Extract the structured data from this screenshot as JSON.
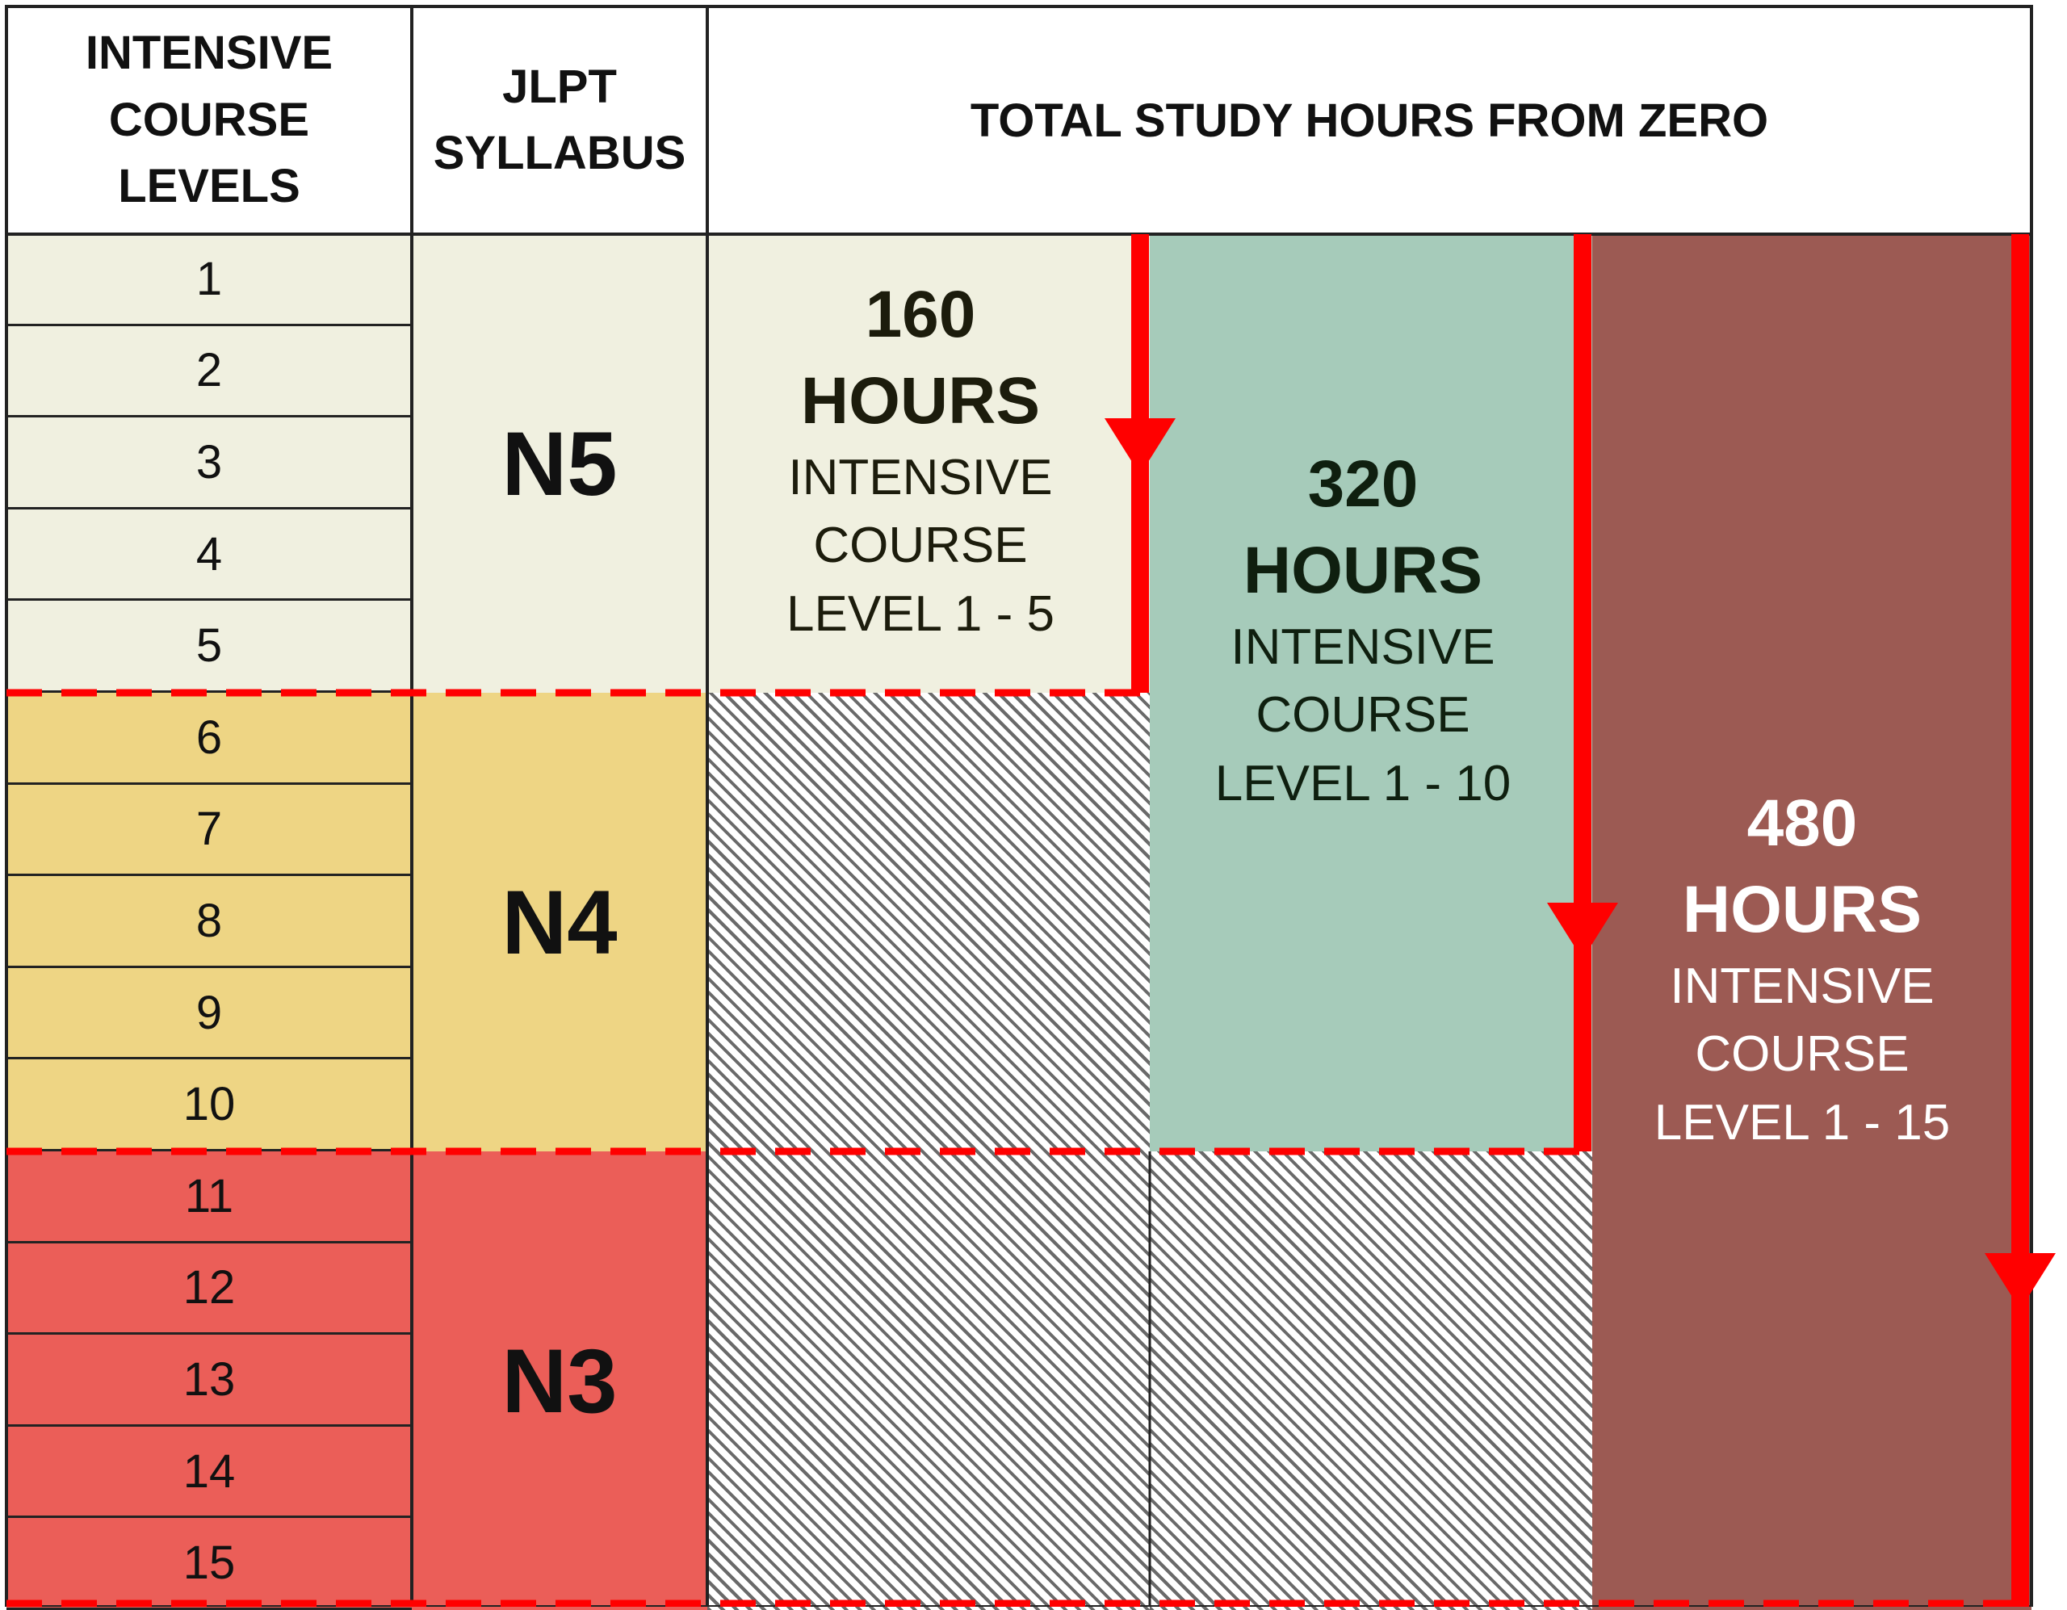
{
  "header": {
    "col1_lines": [
      "INTENSIVE",
      "COURSE",
      "LEVELS"
    ],
    "col2_lines": [
      "JLPT",
      "SYLLABUS"
    ],
    "col3": "TOTAL STUDY HOURS FROM ZERO"
  },
  "levels": [
    "1",
    "2",
    "3",
    "4",
    "5",
    "6",
    "7",
    "8",
    "9",
    "10",
    "11",
    "12",
    "13",
    "14",
    "15"
  ],
  "syllabus": [
    "N5",
    "N4",
    "N3"
  ],
  "blocks": [
    {
      "hours": "160",
      "unit": "HOURS",
      "line1": "INTENSIVE",
      "line2": "COURSE",
      "line3": "LEVEL 1 - 5"
    },
    {
      "hours": "320",
      "unit": "HOURS",
      "line1": "INTENSIVE",
      "line2": "COURSE",
      "line3": "LEVEL 1 - 10"
    },
    {
      "hours": "480",
      "unit": "HOURS",
      "line1": "INTENSIVE",
      "line2": "COURSE",
      "line3": "LEVEL 1 - 15"
    }
  ],
  "colors": {
    "n5": "#f0f0e0",
    "n4": "#eed584",
    "n3": "#eb5e58",
    "block320": "#a6cbba",
    "block480": "#9c5a53",
    "arrow": "#ff0000"
  }
}
